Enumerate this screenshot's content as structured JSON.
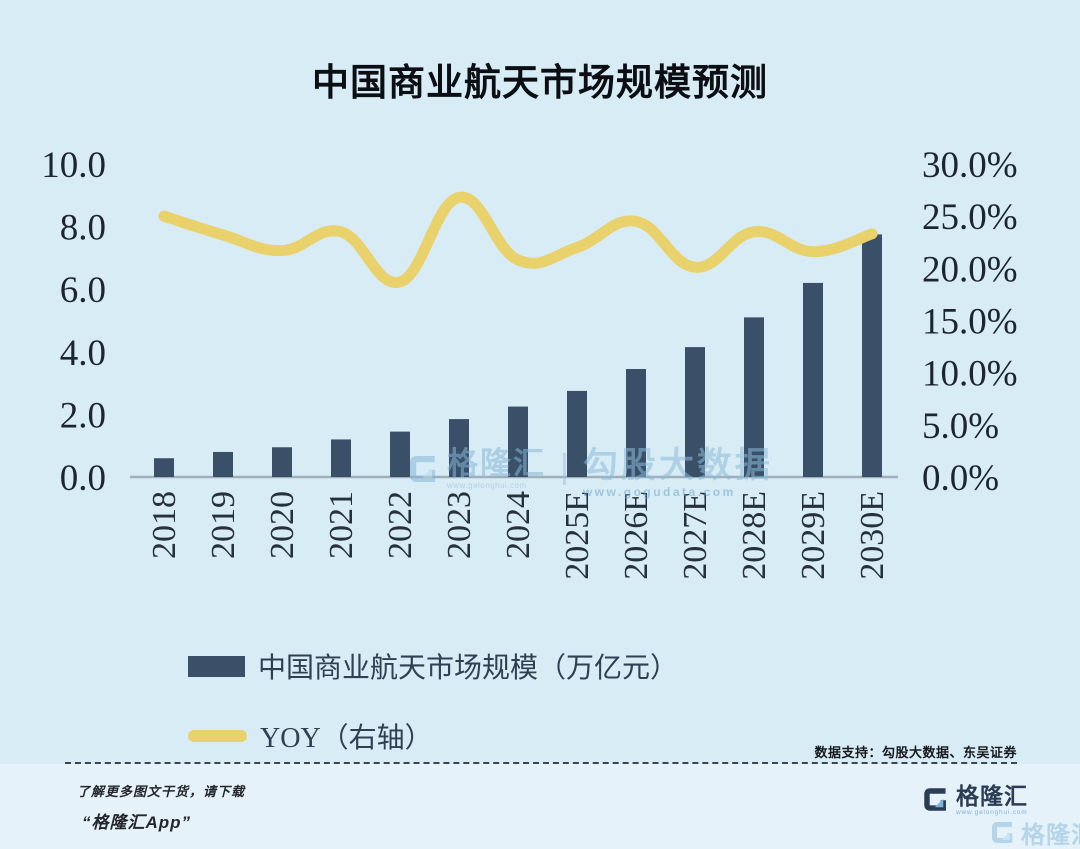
{
  "title": "中国商业航天市场规模预测",
  "chart_data": {
    "type": "bar",
    "categories": [
      "2018",
      "2019",
      "2020",
      "2021",
      "2022",
      "2023",
      "2024",
      "2025E",
      "2026E",
      "2027E",
      "2028E",
      "2029E",
      "2030E"
    ],
    "series": [
      {
        "name": "中国商业航天市场规模（万亿元）",
        "type": "bar",
        "axis": "left",
        "color": "#3a5069",
        "values": [
          0.6,
          0.8,
          0.95,
          1.2,
          1.45,
          1.85,
          2.25,
          2.75,
          3.45,
          4.15,
          5.1,
          6.2,
          7.75
        ]
      },
      {
        "name": "YOY（右轴）",
        "type": "line",
        "axis": "right",
        "color": "#e9d16c",
        "values": [
          25.0,
          23.2,
          21.7,
          23.5,
          18.7,
          26.8,
          20.8,
          22.0,
          24.5,
          20.1,
          23.5,
          21.6,
          23.3
        ]
      }
    ],
    "left_axis": {
      "tick_labels": [
        "0.0",
        "2.0",
        "4.0",
        "6.0",
        "8.0",
        "10.0"
      ],
      "tick_values": [
        0,
        2,
        4,
        6,
        8,
        10
      ],
      "range": [
        0,
        10
      ]
    },
    "right_axis": {
      "tick_labels": [
        "0.0%",
        "5.0%",
        "10.0%",
        "15.0%",
        "20.0%",
        "25.0%",
        "30.0%"
      ],
      "tick_values": [
        0,
        5,
        10,
        15,
        20,
        25,
        30
      ],
      "range": [
        0,
        30
      ]
    },
    "grid": false,
    "legend_position": "bottom-left"
  },
  "legend": {
    "bar_label": "中国商业航天市场规模（万亿元）",
    "line_label": "YOY（右轴）"
  },
  "source_note": "数据支持：勾股大数据、东吴证券",
  "footer": {
    "promo_line1": "了解更多图文干货，请下载",
    "promo_line2": "“格隆汇App”",
    "brand_name": "格隆汇",
    "brand_url": "www.gelonghui.com"
  },
  "watermark": {
    "brand": "格隆汇",
    "brand_url": "www.gelonghui.com",
    "divider": "|",
    "name": "勾股大数据",
    "url": "www.gogudata.com"
  },
  "colors": {
    "background": "#d8ecf6",
    "bar": "#3a5069",
    "line": "#e9d16c",
    "axis_text": "#1d2630",
    "baseline": "#9fb0ba"
  }
}
